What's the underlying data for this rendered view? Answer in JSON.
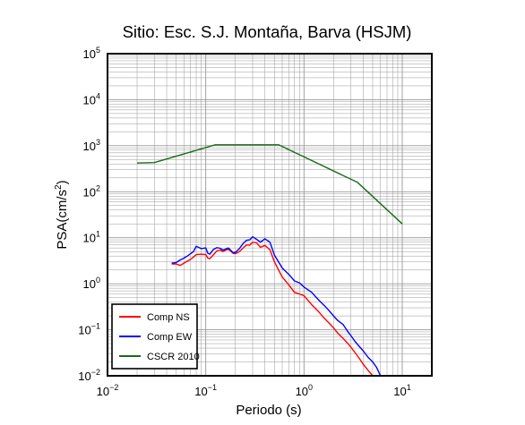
{
  "chart_data": {
    "type": "line",
    "title": "Sitio: Esc. S.J. Montaña, Barva (HSJM)",
    "xlabel": "Periodo (s)",
    "ylabel_base": "PSA(cm/s",
    "ylabel_exp": "2",
    "ylabel_close": ")",
    "x_scale": "log",
    "y_scale": "log",
    "xlim": [
      0.01,
      20
    ],
    "ylim": [
      0.01,
      100000
    ],
    "grid": true,
    "legend_position": "bottom-left",
    "x_ticks": [
      {
        "value": 0.01,
        "base": "10",
        "exp": "−2"
      },
      {
        "value": 0.1,
        "base": "10",
        "exp": "−1"
      },
      {
        "value": 1,
        "base": "10",
        "exp": "0"
      },
      {
        "value": 10,
        "base": "10",
        "exp": "1"
      }
    ],
    "y_ticks": [
      {
        "value": 0.01,
        "base": "10",
        "exp": "−2"
      },
      {
        "value": 0.1,
        "base": "10",
        "exp": "−1"
      },
      {
        "value": 1,
        "base": "10",
        "exp": "0"
      },
      {
        "value": 10,
        "base": "10",
        "exp": "1"
      },
      {
        "value": 100,
        "base": "10",
        "exp": "2"
      },
      {
        "value": 1000,
        "base": "10",
        "exp": "3"
      },
      {
        "value": 10000,
        "base": "10",
        "exp": "4"
      },
      {
        "value": 100000,
        "base": "10",
        "exp": "5"
      }
    ],
    "series": [
      {
        "name": "Comp NS",
        "color": "#ff0000",
        "x": [
          0.045,
          0.05,
          0.055,
          0.06,
          0.065,
          0.07,
          0.075,
          0.08,
          0.09,
          0.1,
          0.105,
          0.11,
          0.12,
          0.13,
          0.14,
          0.15,
          0.16,
          0.17,
          0.18,
          0.19,
          0.2,
          0.22,
          0.24,
          0.26,
          0.28,
          0.3,
          0.33,
          0.36,
          0.4,
          0.45,
          0.5,
          0.55,
          0.6,
          0.7,
          0.8,
          0.9,
          1.0,
          1.2,
          1.4,
          1.6,
          1.8,
          2.0,
          2.2,
          2.5,
          2.8,
          3.0,
          3.3,
          3.6,
          4.0,
          4.5,
          5.0
        ],
        "y": [
          2.7,
          2.7,
          2.5,
          2.8,
          3.1,
          3.4,
          3.8,
          4.3,
          4.4,
          4.3,
          3.6,
          3.5,
          4.3,
          5.2,
          5.4,
          5.0,
          5.4,
          5.6,
          5.1,
          4.6,
          4.5,
          5.0,
          6.0,
          7.0,
          6.9,
          8.0,
          7.8,
          6.2,
          6.8,
          5.5,
          3.0,
          2.0,
          1.4,
          0.95,
          0.65,
          0.6,
          0.55,
          0.35,
          0.25,
          0.18,
          0.14,
          0.11,
          0.085,
          0.065,
          0.05,
          0.042,
          0.032,
          0.025,
          0.018,
          0.013,
          0.01
        ]
      },
      {
        "name": "Comp EW",
        "color": "#0000ff",
        "x": [
          0.045,
          0.05,
          0.055,
          0.06,
          0.065,
          0.07,
          0.075,
          0.08,
          0.09,
          0.1,
          0.105,
          0.11,
          0.12,
          0.13,
          0.14,
          0.15,
          0.16,
          0.17,
          0.18,
          0.19,
          0.2,
          0.22,
          0.24,
          0.26,
          0.28,
          0.3,
          0.33,
          0.36,
          0.4,
          0.45,
          0.5,
          0.55,
          0.6,
          0.7,
          0.8,
          0.9,
          1.0,
          1.2,
          1.4,
          1.6,
          1.8,
          2.0,
          2.2,
          2.5,
          2.8,
          3.0,
          3.3,
          3.6,
          4.0,
          4.5,
          5.0,
          5.5,
          6.0
        ],
        "y": [
          2.8,
          2.9,
          3.3,
          3.6,
          4.0,
          4.5,
          5.0,
          6.5,
          5.8,
          6.0,
          4.6,
          4.4,
          5.6,
          6.1,
          5.9,
          5.4,
          5.7,
          6.0,
          5.3,
          4.7,
          4.8,
          5.8,
          7.5,
          8.8,
          9.0,
          10.5,
          9.2,
          8.0,
          9.5,
          8.0,
          4.2,
          3.0,
          2.2,
          1.6,
          1.15,
          1.05,
          0.85,
          0.65,
          0.45,
          0.34,
          0.26,
          0.2,
          0.16,
          0.13,
          0.09,
          0.075,
          0.056,
          0.045,
          0.035,
          0.025,
          0.02,
          0.015,
          0.01
        ]
      },
      {
        "name": "CSCR 2010",
        "color": "#1a6b1a",
        "x": [
          0.02,
          0.03,
          0.125,
          0.55,
          3.5,
          10
        ],
        "y": [
          420,
          430,
          1050,
          1050,
          160,
          20
        ]
      }
    ]
  }
}
